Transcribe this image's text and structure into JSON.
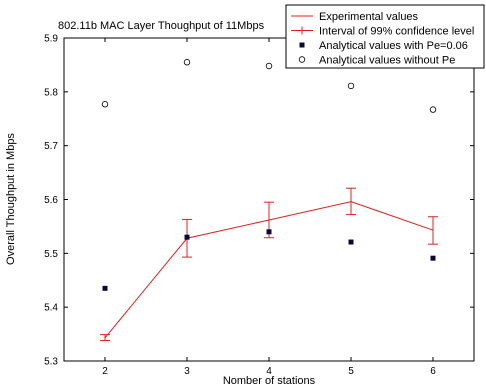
{
  "chart_data": {
    "type": "line",
    "title": "802.11b MAC Layer Thoughput of 11Mbps",
    "xlabel": "Nomber of stations",
    "ylabel": "Overall Thoughput in Mbps",
    "xlim": [
      1.5,
      6.5
    ],
    "ylim": [
      5.3,
      5.9
    ],
    "x_ticks": [
      "2",
      "3",
      "4",
      "5",
      "6"
    ],
    "y_ticks": [
      "5.3",
      "5.4",
      "5.5",
      "5.6",
      "5.7",
      "5.8",
      "5.9"
    ],
    "grid": false,
    "legend_position": "top-right",
    "series": [
      {
        "name": "Experimental values",
        "style": "line",
        "color": "#e02020",
        "x": [
          2,
          3,
          4,
          5,
          6
        ],
        "y": [
          5.343,
          5.528,
          5.562,
          5.596,
          5.543
        ]
      },
      {
        "name": "Interval of 99% confidence level",
        "style": "errorbar",
        "color": "#e02020",
        "x": [
          2,
          3,
          4,
          5,
          6
        ],
        "low": [
          5.338,
          5.493,
          5.529,
          5.572,
          5.517
        ],
        "high": [
          5.349,
          5.563,
          5.595,
          5.621,
          5.568
        ]
      },
      {
        "name": "Analytical values with Pe=0.06",
        "style": "marker-square",
        "color": "#0a0a3a",
        "x": [
          2,
          3,
          4,
          5,
          6
        ],
        "y": [
          5.435,
          5.53,
          5.54,
          5.521,
          5.491
        ]
      },
      {
        "name": "Analytical values without Pe",
        "style": "marker-circle",
        "color": "#000000",
        "x": [
          2,
          3,
          4,
          5,
          6
        ],
        "y": [
          5.777,
          5.855,
          5.848,
          5.811,
          5.767
        ]
      }
    ]
  }
}
